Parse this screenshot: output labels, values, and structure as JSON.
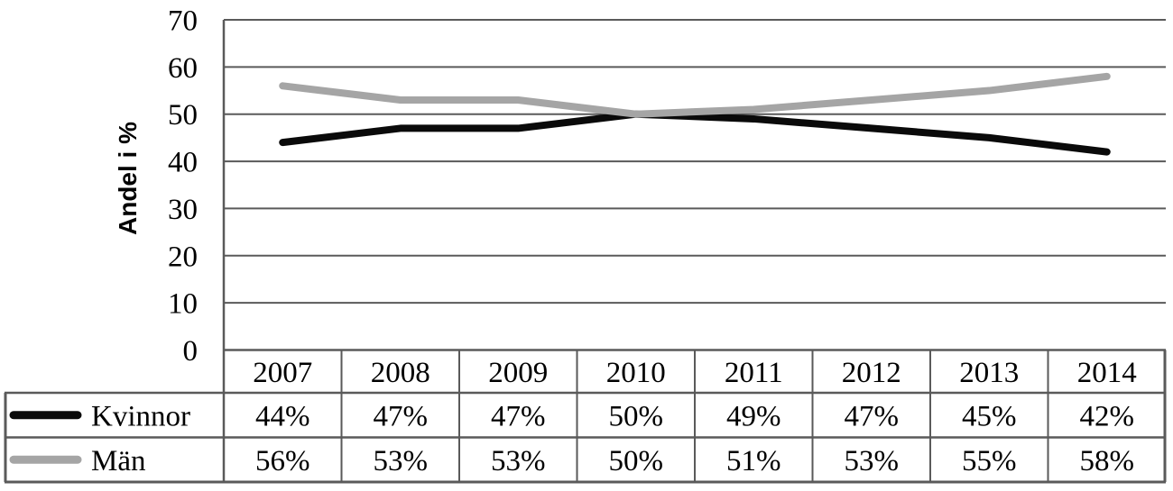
{
  "chart_data": {
    "type": "line",
    "title": "",
    "xlabel": "",
    "ylabel": "Andel i %",
    "ylim": [
      0,
      70
    ],
    "yticks": [
      0,
      10,
      20,
      30,
      40,
      50,
      60,
      70
    ],
    "grid": "horizontal",
    "legend_position": "table-left",
    "categories": [
      "2007",
      "2008",
      "2009",
      "2010",
      "2011",
      "2012",
      "2013",
      "2014"
    ],
    "series": [
      {
        "name": "Kvinnor",
        "color": "#0a0a0a",
        "values": [
          44,
          47,
          47,
          50,
          49,
          47,
          45,
          42
        ],
        "labels": [
          "44%",
          "47%",
          "47%",
          "50%",
          "49%",
          "47%",
          "45%",
          "42%"
        ]
      },
      {
        "name": "Män",
        "color": "#a5a5a5",
        "values": [
          56,
          53,
          53,
          50,
          51,
          53,
          55,
          58
        ],
        "labels": [
          "56%",
          "53%",
          "53%",
          "50%",
          "51%",
          "53%",
          "55%",
          "58%"
        ]
      }
    ]
  },
  "colors": {
    "grid": "#5a5a5a",
    "text": "#000000",
    "background": "#ffffff"
  }
}
